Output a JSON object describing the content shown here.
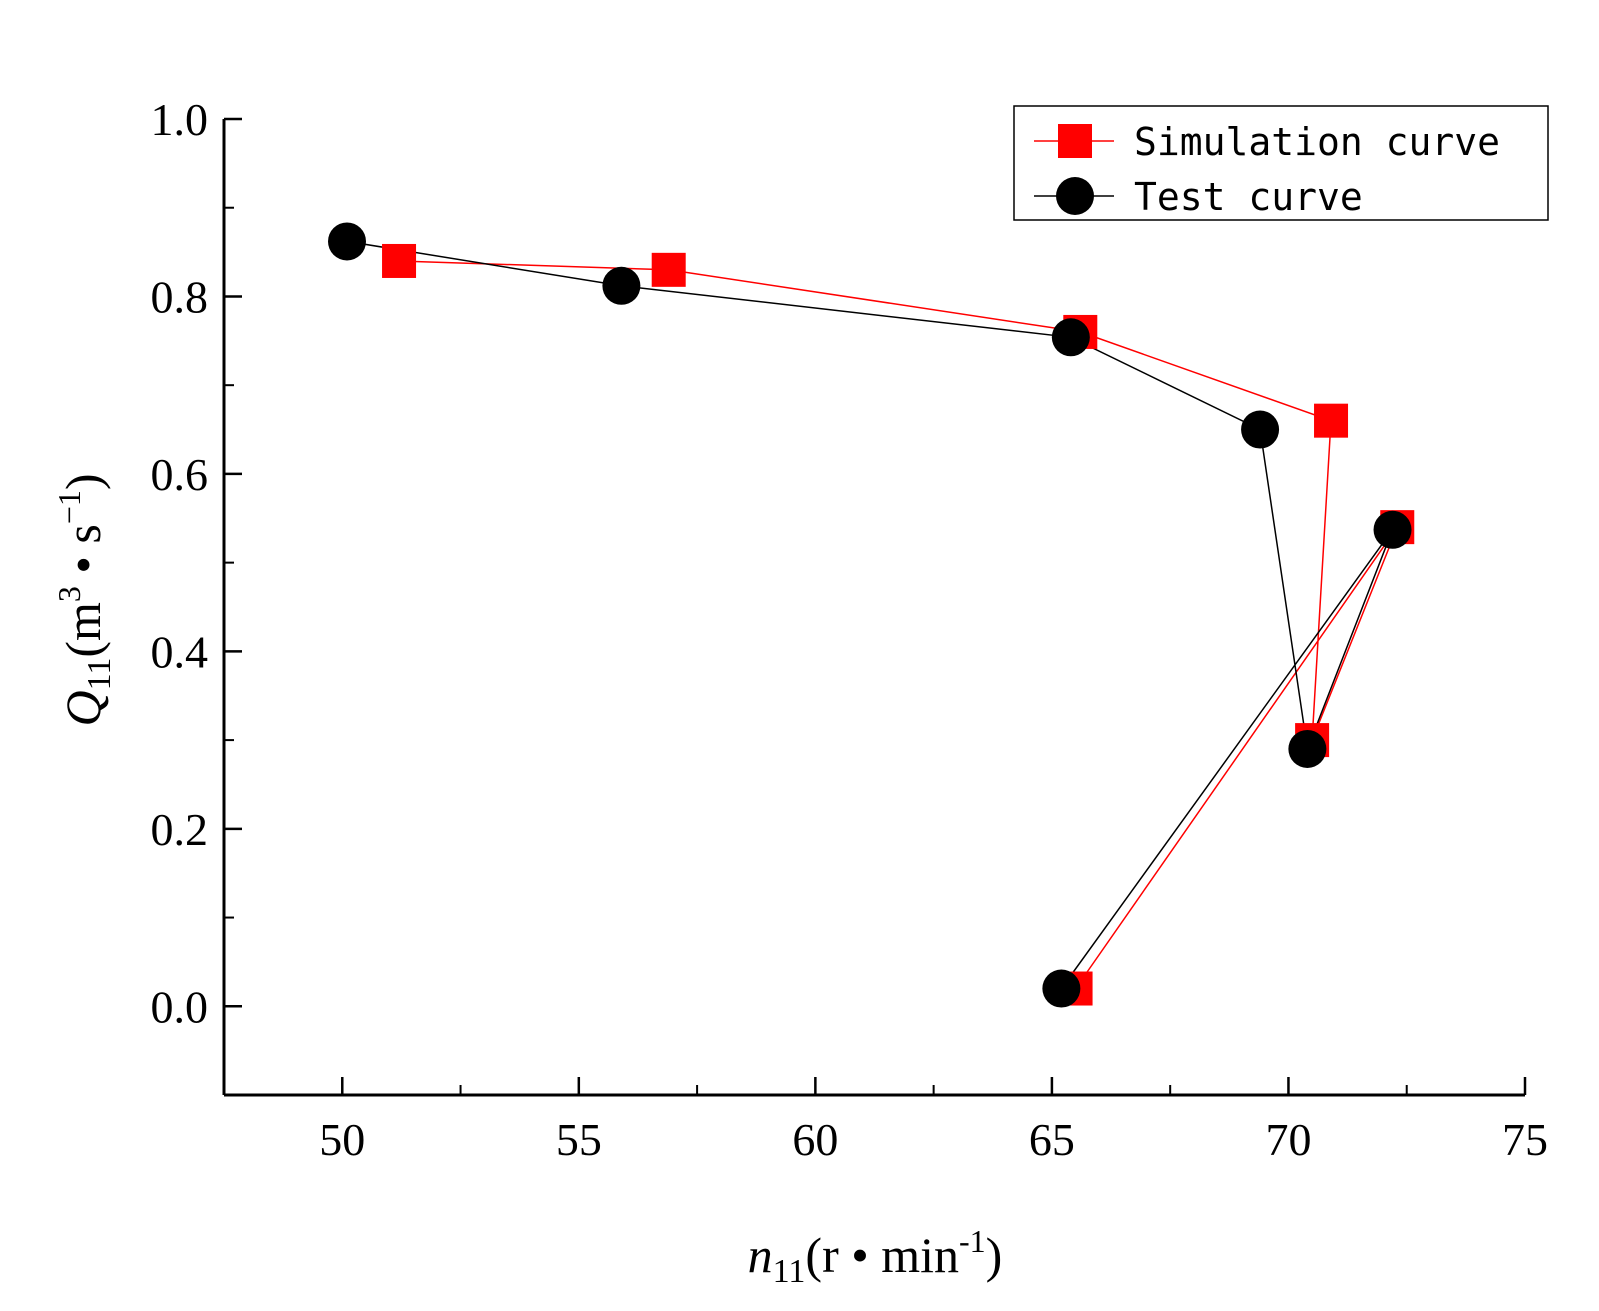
{
  "chart_data": {
    "type": "line",
    "title": "",
    "xlabel": {
      "var": "n",
      "sub": "11",
      "unit_pre": "(r • min",
      "unit_sup": "-1",
      "unit_post": ")"
    },
    "ylabel": {
      "var": "Q",
      "sub": "11",
      "unit_pre": "(m",
      "unit_sup1": "3",
      "unit_mid": " • s",
      "unit_sup2": "−1",
      "unit_post": ")"
    },
    "xlim": [
      47.5,
      75
    ],
    "ylim": [
      -0.1,
      1.0
    ],
    "x_ticks": [
      50,
      55,
      60,
      65,
      70,
      75
    ],
    "x_tick_labels": [
      "50",
      "55",
      "60",
      "65",
      "70",
      "75"
    ],
    "x_minor_ticks": [
      52.5,
      57.5,
      62.5,
      67.5,
      72.5
    ],
    "y_ticks": [
      0.0,
      0.2,
      0.4,
      0.6,
      0.8,
      1.0
    ],
    "y_tick_labels": [
      "0.0",
      "0.2",
      "0.4",
      "0.6",
      "0.8",
      "1.0"
    ],
    "y_minor_ticks": [
      0.1,
      0.3,
      0.5,
      0.7,
      0.9
    ],
    "grid": false,
    "legend_position": "top-right",
    "series": [
      {
        "name": "Simulation curve",
        "color": "#ff0000",
        "marker": "square",
        "x": [
          65.5,
          72.3,
          70.5,
          70.9,
          65.6,
          56.9,
          51.2
        ],
        "y": [
          0.02,
          0.54,
          0.3,
          0.66,
          0.76,
          0.83,
          0.84
        ]
      },
      {
        "name": "Test curve",
        "color": "#000000",
        "marker": "circle",
        "x": [
          65.2,
          72.2,
          70.4,
          69.4,
          65.4,
          55.9,
          50.1
        ],
        "y": [
          0.02,
          0.537,
          0.29,
          0.65,
          0.754,
          0.812,
          0.862
        ]
      }
    ]
  }
}
